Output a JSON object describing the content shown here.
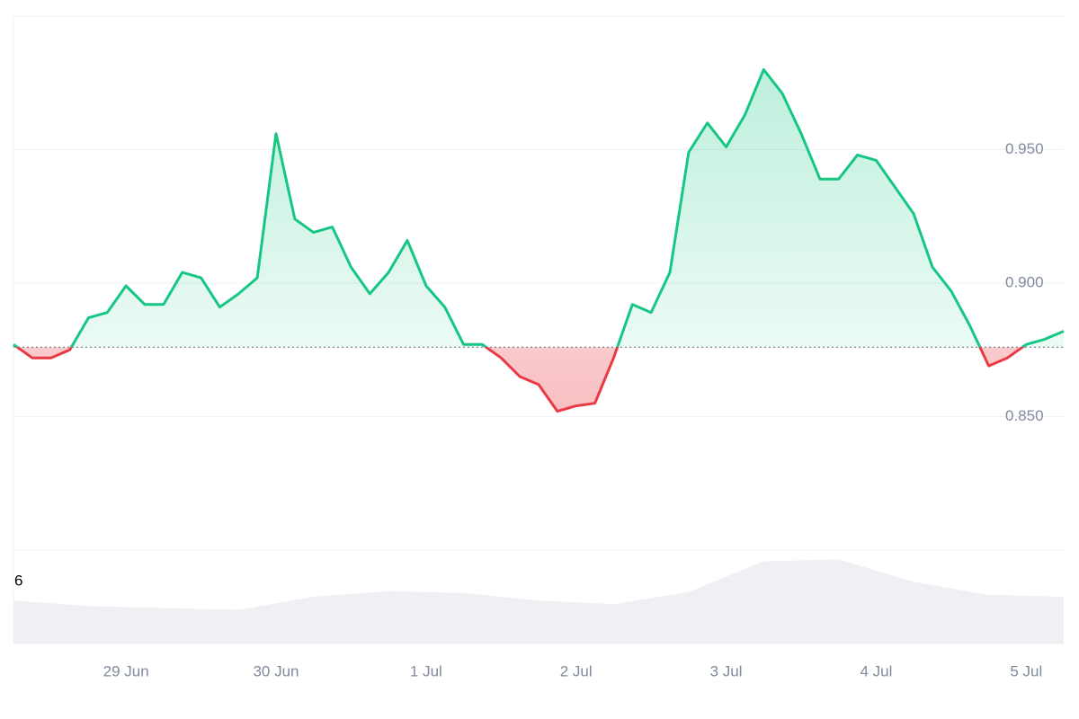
{
  "chart_data": {
    "type": "line",
    "categories": [
      null,
      null,
      null,
      null,
      null,
      null,
      "29 Jun",
      null,
      null,
      null,
      null,
      null,
      null,
      null,
      "30 Jun",
      null,
      null,
      null,
      null,
      null,
      null,
      null,
      "1 Jul",
      null,
      null,
      null,
      null,
      null,
      null,
      null,
      "2 Jul",
      null,
      null,
      null,
      null,
      null,
      null,
      null,
      "3 Jul",
      null,
      null,
      null,
      null,
      null,
      null,
      null,
      "4 Jul",
      null,
      null,
      null,
      null,
      null,
      null,
      null,
      "5 Jul",
      null,
      null
    ],
    "values": [
      0.877,
      0.872,
      0.872,
      0.875,
      0.887,
      0.889,
      0.899,
      0.892,
      0.892,
      0.904,
      0.902,
      0.891,
      0.896,
      0.902,
      0.956,
      0.924,
      0.919,
      0.921,
      0.906,
      0.896,
      0.904,
      0.916,
      0.899,
      0.891,
      0.877,
      0.877,
      0.872,
      0.865,
      0.862,
      0.852,
      0.854,
      0.855,
      0.872,
      0.892,
      0.889,
      0.904,
      0.949,
      0.96,
      0.951,
      0.963,
      0.98,
      0.971,
      0.956,
      0.939,
      0.939,
      0.948,
      0.946,
      0.936,
      0.926,
      0.906,
      0.897,
      0.884,
      0.869,
      0.872,
      0.877,
      0.879,
      0.882
    ],
    "baseline": 0.876,
    "up_color": "#16c784",
    "down_color": "#ea3943",
    "ylim": [
      0.8,
      1.0
    ],
    "yticks": [
      {
        "value": 0.85,
        "label": "0.850"
      },
      {
        "value": 0.9,
        "label": "0.900"
      },
      {
        "value": 0.95,
        "label": "0.950"
      }
    ],
    "grid": true,
    "volume": {
      "label": "6",
      "values": [
        46,
        40,
        38,
        36,
        50,
        56,
        54,
        46,
        42,
        55,
        88,
        90,
        66,
        52,
        50
      ],
      "ylim": [
        0,
        100
      ],
      "color": "#eef0f4"
    }
  }
}
